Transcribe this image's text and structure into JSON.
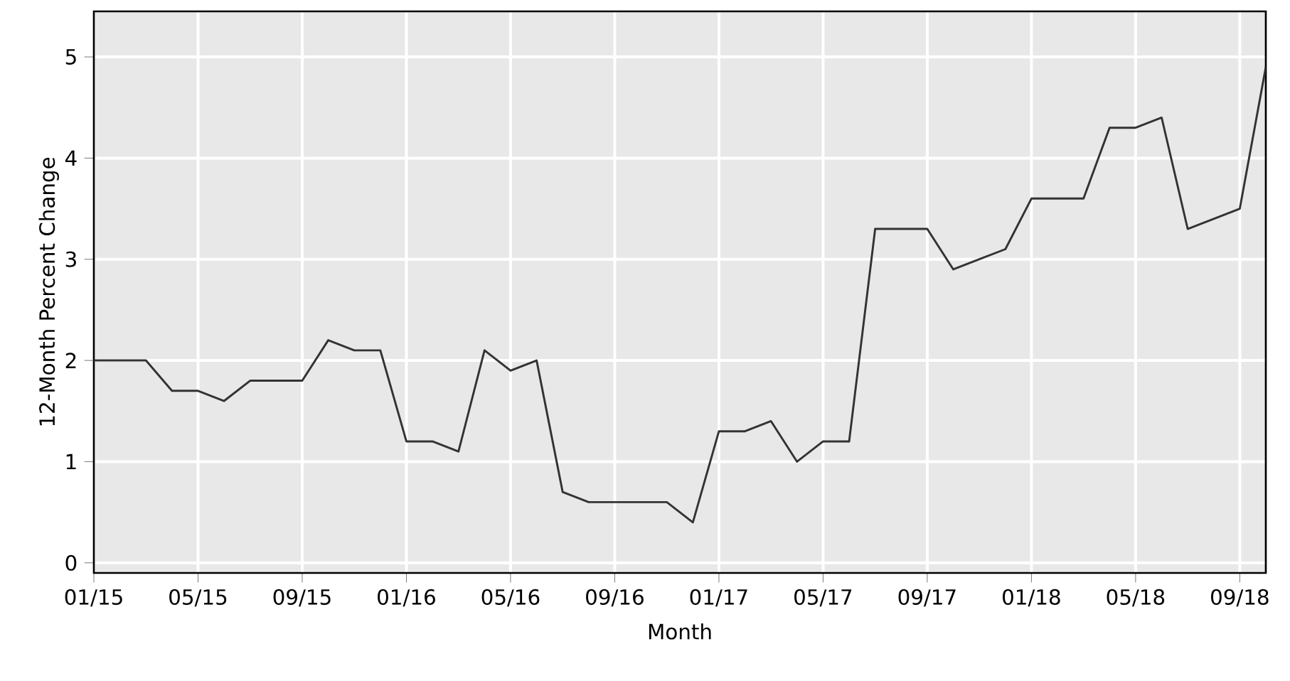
{
  "chart_data": {
    "type": "line",
    "xlabel": "Month",
    "ylabel": "12-Month Percent Change",
    "x": [
      "2015-01",
      "2015-02",
      "2015-03",
      "2015-04",
      "2015-05",
      "2015-06",
      "2015-07",
      "2015-08",
      "2015-09",
      "2015-10",
      "2015-11",
      "2015-12",
      "2016-01",
      "2016-02",
      "2016-03",
      "2016-04",
      "2016-05",
      "2016-06",
      "2016-07",
      "2016-08",
      "2016-09",
      "2016-10",
      "2016-11",
      "2016-12",
      "2017-01",
      "2017-02",
      "2017-03",
      "2017-04",
      "2017-05",
      "2017-06",
      "2017-07",
      "2017-08",
      "2017-09",
      "2017-10",
      "2017-11",
      "2017-12",
      "2018-01",
      "2018-02",
      "2018-03",
      "2018-04",
      "2018-05",
      "2018-06",
      "2018-07",
      "2018-08",
      "2018-09",
      "2018-10"
    ],
    "series": [
      {
        "color": "#333333",
        "values": [
          2.0,
          2.0,
          2.0,
          1.7,
          1.7,
          1.6,
          1.8,
          1.8,
          1.8,
          2.2,
          2.1,
          2.1,
          1.2,
          1.2,
          1.1,
          2.1,
          1.9,
          2.0,
          0.7,
          0.6,
          0.6,
          0.6,
          0.6,
          0.4,
          1.3,
          1.3,
          1.4,
          1.0,
          1.2,
          1.2,
          3.3,
          3.3,
          3.3,
          2.9,
          3.0,
          3.1,
          3.6,
          3.6,
          3.6,
          4.3,
          4.3,
          4.4,
          3.3,
          3.4,
          3.5,
          4.9
        ]
      }
    ],
    "xlim": [
      "2015-01",
      "2018-10"
    ],
    "ylim": [
      -0.1,
      5.45
    ],
    "xticks": [
      {
        "value": "2015-01",
        "label": "01/15"
      },
      {
        "value": "2015-05",
        "label": "05/15"
      },
      {
        "value": "2015-09",
        "label": "09/15"
      },
      {
        "value": "2016-01",
        "label": "01/16"
      },
      {
        "value": "2016-05",
        "label": "05/16"
      },
      {
        "value": "2016-09",
        "label": "09/16"
      },
      {
        "value": "2017-01",
        "label": "01/17"
      },
      {
        "value": "2017-05",
        "label": "05/17"
      },
      {
        "value": "2017-09",
        "label": "09/17"
      },
      {
        "value": "2018-01",
        "label": "01/18"
      },
      {
        "value": "2018-05",
        "label": "05/18"
      },
      {
        "value": "2018-09",
        "label": "09/18"
      }
    ],
    "yticks": [
      0,
      1,
      2,
      3,
      4,
      5
    ],
    "grid": true,
    "marker": "none",
    "line_style": "solid"
  }
}
